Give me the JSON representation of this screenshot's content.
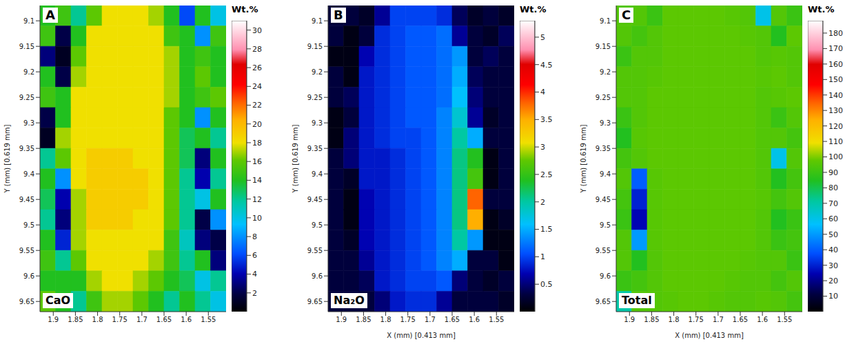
{
  "chart_data": [
    {
      "type": "heatmap",
      "panel": "A",
      "title": "CaO",
      "ylabel": "Y (mm)  [0.619 mm]",
      "x": [
        1.9125,
        1.8775,
        1.8425,
        1.8075,
        1.7725,
        1.7375,
        1.7025,
        1.6675,
        1.6325,
        1.5975,
        1.5625,
        1.5275
      ],
      "y": [
        9.09,
        9.13,
        9.17,
        9.21,
        9.25,
        9.29,
        9.33,
        9.37,
        9.41,
        9.45,
        9.49,
        9.53,
        9.57,
        9.61,
        9.65
      ],
      "xlim": [
        1.93,
        1.51
      ],
      "ylim": [
        9.67,
        9.07
      ],
      "xticks": [
        1.9,
        1.85,
        1.8,
        1.75,
        1.7,
        1.65,
        1.6,
        1.55
      ],
      "yticks": [
        9.1,
        9.15,
        9.2,
        9.25,
        9.3,
        9.35,
        9.4,
        9.45,
        9.5,
        9.55,
        9.6,
        9.65
      ],
      "cells": [
        [
          14,
          15,
          12,
          16,
          18,
          18,
          18,
          17,
          14,
          6,
          14,
          10
        ],
        [
          15,
          2,
          14,
          18,
          18,
          18,
          18,
          18,
          15,
          14,
          8,
          15
        ],
        [
          3,
          1,
          16,
          18,
          18,
          18,
          18,
          18,
          17,
          14,
          15,
          14
        ],
        [
          14,
          2,
          17,
          18,
          18,
          18,
          18,
          18,
          17,
          14,
          16,
          14
        ],
        [
          15,
          14,
          18,
          18,
          18,
          18,
          18,
          18,
          17,
          14,
          15,
          16
        ],
        [
          2,
          14,
          18,
          18,
          18,
          18,
          18,
          18,
          16,
          14,
          8,
          14
        ],
        [
          1,
          17,
          18,
          18,
          18,
          18,
          18,
          18,
          16,
          13,
          14,
          12
        ],
        [
          12,
          16,
          18,
          19,
          19,
          19,
          18,
          18,
          16,
          13,
          3,
          14
        ],
        [
          14,
          8,
          18,
          19,
          19,
          19,
          19,
          18,
          16,
          12,
          4,
          12
        ],
        [
          13,
          4,
          17,
          19,
          19,
          19,
          19,
          18,
          16,
          12,
          10,
          14
        ],
        [
          12,
          3,
          17,
          19,
          19,
          19,
          18,
          18,
          16,
          12,
          2,
          8
        ],
        [
          14,
          5,
          17,
          18,
          18,
          18,
          18,
          18,
          15,
          11,
          3,
          2
        ],
        [
          15,
          12,
          16,
          18,
          18,
          18,
          18,
          17,
          15,
          12,
          14,
          3
        ],
        [
          14,
          14,
          14,
          17,
          18,
          18,
          17,
          16,
          14,
          13,
          10,
          12
        ],
        [
          16,
          14,
          12,
          15,
          17,
          17,
          16,
          14,
          12,
          14,
          12,
          10
        ]
      ],
      "colorbar_label": "Wt.%",
      "color_range": [
        0,
        31
      ],
      "color_ticks": [
        2,
        4,
        6,
        8,
        10,
        12,
        14,
        16,
        18,
        20,
        22,
        24,
        26,
        28,
        30
      ]
    },
    {
      "type": "heatmap",
      "panel": "B",
      "title": "Na₂O",
      "xlabel": "X (mm)  [0.413 mm]",
      "ylabel": "Y (mm)  [0.619 mm]",
      "x": [
        1.9125,
        1.8775,
        1.8425,
        1.8075,
        1.7725,
        1.7375,
        1.7025,
        1.6675,
        1.6325,
        1.5975,
        1.5625,
        1.5275
      ],
      "y": [
        9.09,
        9.13,
        9.17,
        9.21,
        9.25,
        9.29,
        9.33,
        9.37,
        9.41,
        9.45,
        9.49,
        9.53,
        9.57,
        9.61,
        9.65
      ],
      "xlim": [
        1.93,
        1.51
      ],
      "ylim": [
        9.67,
        9.07
      ],
      "xticks": [
        1.9,
        1.85,
        1.8,
        1.75,
        1.7,
        1.65,
        1.6,
        1.55
      ],
      "yticks": [
        9.1,
        9.15,
        9.2,
        9.25,
        9.3,
        9.35,
        9.4,
        9.45,
        9.5,
        9.55,
        9.6,
        9.65
      ],
      "cells": [
        [
          0.3,
          0.3,
          0.2,
          0.6,
          1.0,
          1.0,
          1.0,
          0.9,
          0.4,
          0.2,
          0.3,
          0.2
        ],
        [
          0.3,
          0.1,
          0.3,
          0.9,
          1.0,
          1.1,
          1.1,
          1.2,
          0.6,
          0.3,
          0.2,
          0.4
        ],
        [
          0.1,
          0.1,
          0.7,
          0.9,
          1.0,
          1.1,
          1.1,
          1.2,
          1.4,
          0.3,
          0.4,
          0.3
        ],
        [
          0.3,
          0.1,
          0.8,
          0.9,
          1.0,
          1.1,
          1.1,
          1.2,
          1.5,
          0.4,
          0.3,
          0.3
        ],
        [
          0.3,
          0.4,
          0.8,
          0.9,
          1.0,
          1.1,
          1.1,
          1.2,
          1.6,
          0.5,
          0.3,
          0.3
        ],
        [
          0.1,
          0.3,
          0.8,
          0.9,
          1.0,
          1.1,
          1.1,
          1.3,
          1.8,
          0.6,
          0.2,
          0.3
        ],
        [
          0.1,
          0.5,
          0.8,
          0.9,
          1.0,
          1.0,
          1.1,
          1.3,
          2.0,
          1.5,
          0.3,
          0.3
        ],
        [
          0.3,
          0.5,
          0.8,
          0.8,
          0.9,
          1.0,
          1.1,
          1.3,
          2.1,
          2.4,
          0.1,
          0.3
        ],
        [
          0.3,
          0.2,
          0.8,
          0.8,
          0.9,
          1.0,
          1.1,
          1.3,
          2.1,
          2.6,
          0.1,
          0.3
        ],
        [
          0.3,
          0.1,
          0.7,
          0.8,
          0.9,
          1.0,
          1.1,
          1.3,
          2.1,
          3.8,
          0.3,
          0.3
        ],
        [
          0.3,
          0.1,
          0.7,
          0.8,
          0.9,
          1.0,
          1.1,
          1.3,
          2.1,
          3.5,
          0.1,
          0.2
        ],
        [
          0.3,
          0.2,
          0.7,
          0.8,
          0.9,
          1.0,
          1.1,
          1.3,
          2.0,
          1.4,
          0.1,
          0.1
        ],
        [
          0.3,
          0.3,
          0.6,
          0.8,
          0.9,
          1.0,
          1.1,
          1.3,
          1.5,
          0.3,
          0.3,
          0.1
        ],
        [
          0.3,
          0.3,
          0.4,
          0.8,
          0.9,
          1.0,
          1.0,
          1.1,
          0.5,
          0.3,
          0.2,
          0.3
        ],
        [
          0.3,
          0.3,
          0.3,
          0.5,
          0.8,
          0.9,
          0.9,
          0.6,
          0.3,
          0.3,
          0.3,
          0.2
        ]
      ],
      "colorbar_label": "Wt.%",
      "color_range": [
        0,
        5.3
      ],
      "color_ticks": [
        0.5,
        1,
        1.5,
        2,
        2.5,
        3,
        3.5,
        4,
        4.5,
        5
      ]
    },
    {
      "type": "heatmap",
      "panel": "C",
      "title": "Total",
      "xlabel": "X (mm)  [0.413 mm]",
      "ylabel": "Y (mm)  [0.619 mm]",
      "x": [
        1.9125,
        1.8775,
        1.8425,
        1.8075,
        1.7725,
        1.7375,
        1.7025,
        1.6675,
        1.6325,
        1.5975,
        1.5625,
        1.5275
      ],
      "y": [
        9.09,
        9.13,
        9.17,
        9.21,
        9.25,
        9.29,
        9.33,
        9.37,
        9.41,
        9.45,
        9.49,
        9.53,
        9.57,
        9.61,
        9.65
      ],
      "xlim": [
        1.93,
        1.51
      ],
      "ylim": [
        9.67,
        9.07
      ],
      "xticks": [
        1.9,
        1.85,
        1.8,
        1.75,
        1.7,
        1.65,
        1.6,
        1.55
      ],
      "yticks": [
        9.1,
        9.15,
        9.2,
        9.25,
        9.3,
        9.35,
        9.4,
        9.45,
        9.5,
        9.55,
        9.6,
        9.65
      ],
      "cells": [
        [
          95,
          95,
          90,
          97,
          97,
          97,
          97,
          96,
          95,
          60,
          95,
          90
        ],
        [
          95,
          92,
          95,
          97,
          97,
          97,
          97,
          97,
          96,
          95,
          85,
          97
        ],
        [
          90,
          95,
          95,
          97,
          97,
          97,
          97,
          97,
          97,
          95,
          96,
          95
        ],
        [
          95,
          95,
          96,
          97,
          97,
          97,
          97,
          97,
          97,
          96,
          97,
          95
        ],
        [
          95,
          95,
          97,
          97,
          97,
          97,
          97,
          97,
          97,
          95,
          96,
          97
        ],
        [
          90,
          95,
          97,
          97,
          97,
          97,
          97,
          97,
          97,
          95,
          90,
          95
        ],
        [
          85,
          96,
          97,
          97,
          97,
          97,
          97,
          97,
          97,
          95,
          95,
          92
        ],
        [
          92,
          95,
          97,
          97,
          97,
          97,
          97,
          97,
          97,
          95,
          60,
          95
        ],
        [
          95,
          40,
          96,
          97,
          97,
          97,
          97,
          97,
          97,
          95,
          85,
          92
        ],
        [
          92,
          30,
          96,
          97,
          97,
          97,
          97,
          97,
          97,
          96,
          92,
          95
        ],
        [
          90,
          25,
          96,
          97,
          97,
          97,
          97,
          97,
          97,
          95,
          85,
          90
        ],
        [
          95,
          50,
          96,
          97,
          97,
          97,
          97,
          97,
          97,
          95,
          90,
          92
        ],
        [
          95,
          85,
          95,
          97,
          97,
          97,
          97,
          97,
          96,
          95,
          95,
          90
        ],
        [
          90,
          92,
          95,
          97,
          97,
          97,
          97,
          96,
          95,
          95,
          92,
          95
        ],
        [
          70,
          95,
          95,
          96,
          97,
          97,
          96,
          95,
          95,
          96,
          95,
          92
        ]
      ],
      "colorbar_label": "Wt.%",
      "color_range": [
        0,
        188
      ],
      "color_ticks": [
        10,
        20,
        30,
        40,
        50,
        60,
        70,
        80,
        90,
        100,
        110,
        120,
        130,
        140,
        150,
        160,
        170,
        180
      ]
    }
  ]
}
